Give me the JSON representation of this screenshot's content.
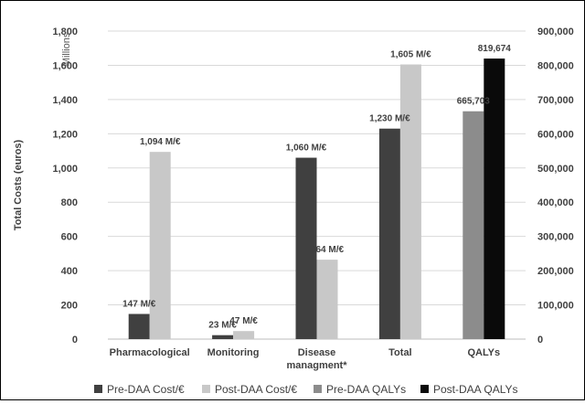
{
  "chart_data": {
    "type": "bar",
    "categories": [
      "Pharmacological",
      "Monitoring",
      "Disease managment*",
      "Total",
      "QALYs"
    ],
    "category_lines": [
      [
        "Pharmacological"
      ],
      [
        "Monitoring"
      ],
      [
        "Disease",
        "managment*"
      ],
      [
        "Total"
      ],
      [
        "QALYs"
      ]
    ],
    "left_axis": {
      "label": "Total Costs (euros)",
      "unit_label": "Millions",
      "ylim": [
        0,
        1800
      ],
      "ticks": [
        "0",
        "200",
        "400",
        "600",
        "800",
        "1,000",
        "1,200",
        "1,400",
        "1,600",
        "1,800"
      ],
      "tick_values": [
        0,
        200,
        400,
        600,
        800,
        1000,
        1200,
        1400,
        1600,
        1800
      ]
    },
    "right_axis": {
      "label": "",
      "ylim": [
        0,
        900000
      ],
      "ticks": [
        "0",
        "100,000",
        "200,000",
        "300,000",
        "400,000",
        "500,000",
        "600,000",
        "700,000",
        "800,000",
        "900,000"
      ],
      "tick_values": [
        0,
        100000,
        200000,
        300000,
        400000,
        500000,
        600000,
        700000,
        800000,
        900000
      ]
    },
    "grid": true,
    "legend_position": "bottom",
    "series": [
      {
        "name": "Pre-DAA Cost/€",
        "color": "#404040",
        "axis": "left",
        "values": [
          147,
          23,
          1060,
          1230,
          null
        ],
        "labels": [
          "147 M/€",
          "23 M/€",
          "1,060 M/€",
          "1,230 M/€",
          null
        ]
      },
      {
        "name": "Post-DAA Cost/€",
        "color": "#c8c8c8",
        "axis": "left",
        "values": [
          1094,
          47,
          464,
          1605,
          null
        ],
        "labels": [
          "1,094 M/€",
          "47 M/€",
          "464 M/€",
          "1,605 M/€",
          null
        ]
      },
      {
        "name": "Pre-DAA QALYs",
        "color": "#8c8c8c",
        "axis": "right",
        "values": [
          null,
          null,
          null,
          null,
          665703
        ],
        "labels": [
          null,
          null,
          null,
          null,
          "665,703"
        ]
      },
      {
        "name": "Post-DAA QALYs",
        "color": "#0a0a0a",
        "axis": "right",
        "values": [
          null,
          null,
          null,
          null,
          819674
        ],
        "labels": [
          null,
          null,
          null,
          null,
          "819,674"
        ]
      }
    ]
  }
}
